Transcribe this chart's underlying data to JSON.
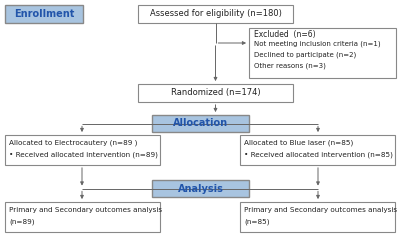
{
  "bg_color": "#ffffff",
  "box_border_color": "#888888",
  "box_fill_white": "#ffffff",
  "box_fill_blue": "#a8c4e0",
  "text_color_dark": "#222222",
  "text_color_blue": "#2255aa",
  "enrollment_label": "Enrollment",
  "assessed_text": "Assessed for eligibility (n=180)",
  "excluded_title": "Excluded  (n=6)",
  "excluded_items": [
    "Not meeting inclusion criteria (n=1)",
    "Declined to participate (n=2)",
    "Other reasons (n=3)"
  ],
  "randomized_text": "Randomized (n=174)",
  "allocation_label": "Allocation",
  "left_alloc_lines": [
    "Allocated to Electrocautery (n=89 )",
    "• Received allocated intervention (n=89)"
  ],
  "right_alloc_lines": [
    "Allocated to Blue laser (n=85)",
    "• Received allocated intervention (n=85)"
  ],
  "analysis_label": "Analysis",
  "left_analysis_lines": [
    "Primary and Secondary outcomes analysis",
    "(n=89)"
  ],
  "right_analysis_lines": [
    "Primary and Secondary outcomes analysis",
    "(n=85)"
  ]
}
